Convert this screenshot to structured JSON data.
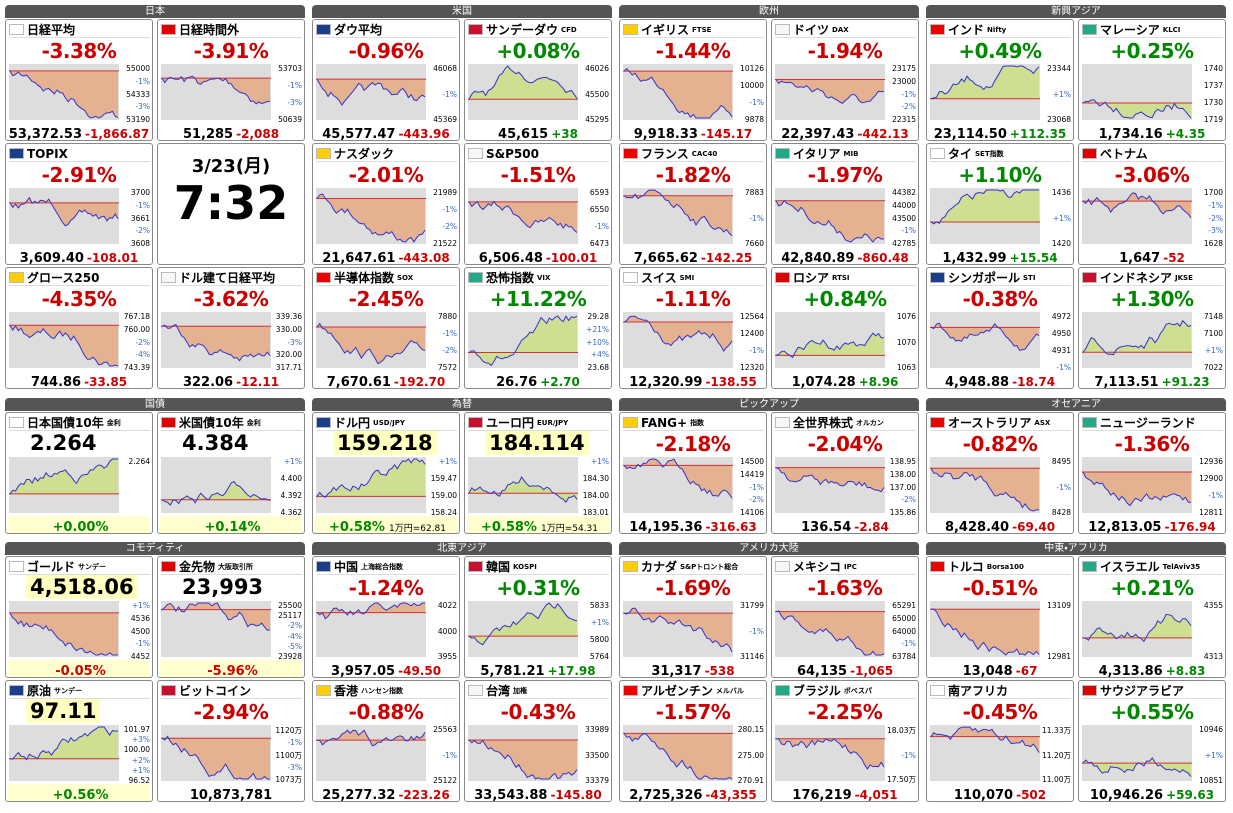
{
  "sections": [
    {
      "groups": [
        {
          "title": "日本",
          "tiles": [
            {
              "name": "日経平均",
              "sub": "",
              "pct": "-3.38%",
              "value": "53,372.53",
              "change": "-1,866.87",
              "axis": [
                "55000",
                "-1%",
                "54333",
                "-3%",
                "53190"
              ]
            },
            {
              "name": "日経時間外",
              "sub": "",
              "pct": "-3.91%",
              "value": "51,285",
              "change": "-2,088",
              "axis": [
                "53703",
                "-1%",
                "-3%",
                "50639"
              ]
            },
            {
              "name": "TOPIX",
              "sub": "",
              "pct": "-2.91%",
              "value": "3,609.40",
              "change": "-108.01",
              "axis": [
                "3700",
                "-1%",
                "3661",
                "-2%",
                "3608"
              ]
            },
            {
              "date": "3/23(月)",
              "time": "7:32"
            },
            {
              "name": "グロース250",
              "sub": "",
              "pct": "-4.35%",
              "value": "744.86",
              "change": "-33.85",
              "axis": [
                "767.18",
                "760.00",
                "-2%",
                "-4%",
                "743.39"
              ]
            },
            {
              "name": "ドル建て日経平均",
              "sub": "",
              "pct": "-3.62%",
              "value": "322.06",
              "change": "-12.11",
              "axis": [
                "339.36",
                "330.00",
                "-3%",
                "320.00",
                "317.71"
              ]
            }
          ]
        },
        {
          "title": "米国",
          "tiles": [
            {
              "name": "ダウ平均",
              "sub": "",
              "pct": "-0.96%",
              "value": "45,577.47",
              "change": "-443.96",
              "axis": [
                "46068",
                "-1%",
                "45369"
              ]
            },
            {
              "name": "サンデーダウ",
              "sub": "CFD",
              "pct": "+0.08%",
              "value": "45,615",
              "change": "+38",
              "axis": [
                "46026",
                "45500",
                "45295"
              ]
            },
            {
              "name": "ナスダック",
              "sub": "",
              "pct": "-2.01%",
              "value": "21,647.61",
              "change": "-443.08",
              "axis": [
                "21989",
                "-1%",
                "-2%",
                "21522"
              ]
            },
            {
              "name": "S&P500",
              "sub": "",
              "pct": "-1.51%",
              "value": "6,506.48",
              "change": "-100.01",
              "axis": [
                "6593",
                "6550",
                "-1%",
                "6473"
              ]
            },
            {
              "name": "半導体指数",
              "sub": "SOX",
              "pct": "-2.45%",
              "value": "7,670.61",
              "change": "-192.70",
              "axis": [
                "7880",
                "-1%",
                "-2%",
                "7572"
              ]
            },
            {
              "name": "恐怖指数",
              "sub": "VIX",
              "pct": "+11.22%",
              "value": "26.76",
              "change": "+2.70",
              "axis": [
                "29.28",
                "+21%",
                "+10%",
                "+4%",
                "23.68"
              ]
            }
          ]
        },
        {
          "title": "欧州",
          "tiles": [
            {
              "name": "イギリス",
              "sub": "FTSE",
              "pct": "-1.44%",
              "value": "9,918.33",
              "change": "-145.17",
              "axis": [
                "10126",
                "10000",
                "-1%",
                "9878"
              ]
            },
            {
              "name": "ドイツ",
              "sub": "DAX",
              "pct": "-1.94%",
              "value": "22,397.43",
              "change": "-442.13",
              "axis": [
                "23175",
                "23000",
                "-1%",
                "-2%",
                "22315"
              ]
            },
            {
              "name": "フランス",
              "sub": "CAC40",
              "pct": "-1.82%",
              "value": "7,665.62",
              "change": "-142.25",
              "axis": [
                "7883",
                "-1%",
                "7660"
              ]
            },
            {
              "name": "イタリア",
              "sub": "MIB",
              "pct": "-1.97%",
              "value": "42,840.89",
              "change": "-860.48",
              "axis": [
                "44382",
                "44000",
                "43500",
                "-1%",
                "42785"
              ]
            },
            {
              "name": "スイス",
              "sub": "SMI",
              "pct": "-1.11%",
              "value": "12,320.99",
              "change": "-138.55",
              "axis": [
                "12564",
                "12400",
                "-1%",
                "12320"
              ]
            },
            {
              "name": "ロシア",
              "sub": "RTSI",
              "pct": "+0.84%",
              "value": "1,074.28",
              "change": "+8.96",
              "axis": [
                "1076",
                "1070",
                "1063"
              ]
            }
          ]
        },
        {
          "title": "新興アジア",
          "tiles": [
            {
              "name": "インド",
              "sub": "Nifty",
              "pct": "+0.49%",
              "value": "23,114.50",
              "change": "+112.35",
              "axis": [
                "23344",
                "+1%",
                "23068"
              ]
            },
            {
              "name": "マレーシア",
              "sub": "KLCI",
              "pct": "+0.25%",
              "value": "1,734.16",
              "change": "+4.35",
              "axis": [
                "1740",
                "1737",
                "1730",
                "1719"
              ]
            },
            {
              "name": "タイ",
              "sub": "SET指数",
              "pct": "+1.10%",
              "value": "1,432.99",
              "change": "+15.54",
              "axis": [
                "1436",
                "+1%",
                "1420"
              ]
            },
            {
              "name": "ベトナム",
              "sub": "",
              "pct": "-3.06%",
              "value": "1,647",
              "change": "-52",
              "axis": [
                "1700",
                "-1%",
                "-2%",
                "-3%",
                "1628"
              ]
            },
            {
              "name": "シンガポール",
              "sub": "STI",
              "pct": "-0.38%",
              "value": "4,948.88",
              "change": "-18.74",
              "axis": [
                "4972",
                "4950",
                "4931",
                "-1%"
              ]
            },
            {
              "name": "インドネシア",
              "sub": "JKSE",
              "pct": "+1.30%",
              "value": "7,113.51",
              "change": "+91.23",
              "axis": [
                "7148",
                "7100",
                "+1%",
                "7022"
              ]
            }
          ]
        }
      ]
    },
    {
      "groups": [
        {
          "title": "国債",
          "tiles": [
            {
              "name": "日本国債10年",
              "sub": "金利",
              "price": "2.264",
              "pct": "+0.00%",
              "axis": [
                "2.264"
              ]
            },
            {
              "name": "米国債10年",
              "sub": "金利",
              "price": "4.384",
              "pct": "+0.14%",
              "axis": [
                "+1%",
                "4.400",
                "4.392",
                "4.362"
              ]
            }
          ]
        },
        {
          "title": "為替",
          "tiles": [
            {
              "name": "ドル円",
              "sub": "USD/JPY",
              "price": "159.218",
              "pct": "+0.58%",
              "note": "1万円=62.81",
              "axis": [
                "+1%",
                "159.47",
                "159.00",
                "158.24"
              ]
            },
            {
              "name": "ユーロ円",
              "sub": "EUR/JPY",
              "price": "184.114",
              "pct": "+0.58%",
              "note": "1万円=54.31",
              "axis": [
                "+1%",
                "184.30",
                "184.00",
                "183.01"
              ]
            }
          ]
        },
        {
          "title": "ピックアップ",
          "tiles": [
            {
              "name": "FANG+",
              "sub": "指数",
              "pct": "-2.18%",
              "value": "14,195.36",
              "change": "-316.63",
              "axis": [
                "14500",
                "14419",
                "-1%",
                "-2%",
                "14106"
              ]
            },
            {
              "name": "全世界株式",
              "sub": "オルカン",
              "pct": "-2.04%",
              "value": "136.54",
              "change": "-2.84",
              "axis": [
                "138.95",
                "138.00",
                "137.00",
                "-2%",
                "135.86"
              ]
            }
          ]
        },
        {
          "title": "オセアニア",
          "tiles": [
            {
              "name": "オーストラリア",
              "sub": "ASX",
              "pct": "-0.82%",
              "value": "8,428.40",
              "change": "-69.40",
              "axis": [
                "8495",
                "-1%",
                "8428"
              ]
            },
            {
              "name": "ニュージーランド",
              "sub": "",
              "pct": "-1.36%",
              "value": "12,813.05",
              "change": "-176.94",
              "axis": [
                "12936",
                "12900",
                "-1%",
                "12811"
              ]
            }
          ]
        }
      ]
    },
    {
      "groups": [
        {
          "title": "コモディティ",
          "tiles": [
            {
              "name": "ゴールド",
              "sub": "サンデー",
              "price": "4,518.06",
              "pct": "-0.05%",
              "axis": [
                "+1%",
                "4536",
                "4500",
                "-1%",
                "4452"
              ]
            },
            {
              "name": "金先物",
              "sub": "大阪取引所",
              "price": "23,993",
              "pct": "-5.96%",
              "axis": [
                "25500",
                "25117",
                "-2%",
                "-4%",
                "-5%",
                "23928"
              ]
            },
            {
              "name": "原油",
              "sub": "サンデー",
              "price": "97.11",
              "pct": "+0.56%",
              "axis": [
                "101.97",
                "+3%",
                "100.00",
                "+2%",
                "+1%",
                "96.52"
              ]
            },
            {
              "name": "ビットコイン",
              "sub": "",
              "pct": "-2.94%",
              "value": "10,873,781",
              "axis": [
                "1120万",
                "-1%",
                "1100万",
                "-3%",
                "1073万"
              ]
            }
          ]
        },
        {
          "title": "北東アジア",
          "tiles": [
            {
              "name": "中国",
              "sub": "上海総合指数",
              "pct": "-1.24%",
              "value": "3,957.05",
              "change": "-49.50",
              "axis": [
                "4022",
                "4000",
                "3955"
              ]
            },
            {
              "name": "韓国",
              "sub": "KOSPI",
              "pct": "+0.31%",
              "value": "5,781.21",
              "change": "+17.98",
              "axis": [
                "5833",
                "+1%",
                "5800",
                "5764"
              ]
            },
            {
              "name": "香港",
              "sub": "ハンセン指数",
              "pct": "-0.88%",
              "value": "25,277.32",
              "change": "-223.26",
              "axis": [
                "25563",
                "-1%",
                "25122"
              ]
            },
            {
              "name": "台湾",
              "sub": "加権",
              "pct": "-0.43%",
              "value": "33,543.88",
              "change": "-145.80",
              "axis": [
                "33989",
                "33500",
                "33379"
              ]
            }
          ]
        },
        {
          "title": "アメリカ大陸",
          "tiles": [
            {
              "name": "カナダ",
              "sub": "S&Pトロント総合",
              "pct": "-1.69%",
              "value": "31,317",
              "change": "-538",
              "axis": [
                "31799",
                "-1%",
                "31146"
              ]
            },
            {
              "name": "メキシコ",
              "sub": "IPC",
              "pct": "-1.63%",
              "value": "64,135",
              "change": "-1,065",
              "axis": [
                "65291",
                "65000",
                "64000",
                "-1%",
                "63784"
              ]
            },
            {
              "name": "アルゼンチン",
              "sub": "メルバル",
              "pct": "-1.57%",
              "value": "2,725,326",
              "change": "-43,355",
              "axis": [
                "280.15",
                "275.00",
                "270.91"
              ]
            },
            {
              "name": "ブラジル",
              "sub": "ボベスパ",
              "pct": "-2.25%",
              "value": "176,219",
              "change": "-4,051",
              "axis": [
                "18.03万",
                "-1%",
                "17.50万"
              ]
            }
          ]
        },
        {
          "title": "中東・アフリカ",
          "tiles": [
            {
              "name": "トルコ",
              "sub": "Borsa100",
              "pct": "-0.51%",
              "value": "13,048",
              "change": "-67",
              "axis": [
                "13109",
                "12981"
              ]
            },
            {
              "name": "イスラエル",
              "sub": "TelAviv35",
              "pct": "+0.21%",
              "value": "4,313.86",
              "change": "+8.83",
              "axis": [
                "4355",
                "4313"
              ]
            },
            {
              "name": "南アフリカ",
              "sub": "",
              "pct": "-0.45%",
              "value": "110,070",
              "change": "-502",
              "axis": [
                "11.33万",
                "11.20万",
                "11.00万"
              ]
            },
            {
              "name": "サウジアラビア",
              "sub": "",
              "pct": "+0.55%",
              "value": "10,946.26",
              "change": "+59.63",
              "axis": [
                "10946",
                "+1%",
                "10851"
              ]
            }
          ]
        }
      ]
    }
  ]
}
